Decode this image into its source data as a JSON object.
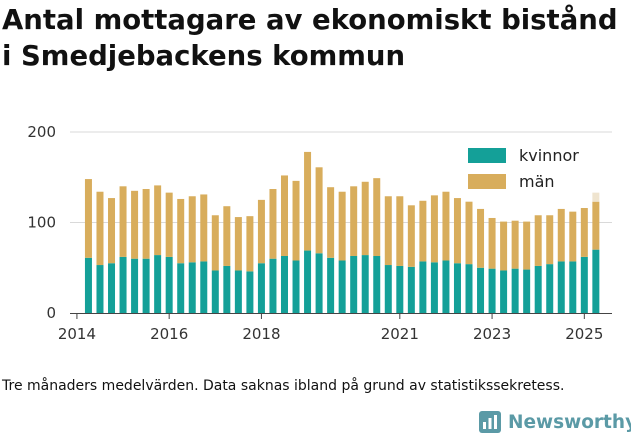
{
  "title": "Antal mottagare av ekonomiskt bistånd i Smedjebackens kommun",
  "note": "Tre månaders medelvärden. Data saknas ibland på grund av statistikssekretess.",
  "brand": {
    "name": "Newsworthy",
    "logo_icon": "newsworthy-logo-icon"
  },
  "colors": {
    "kvinnor": "#14a098",
    "man": "#d8ad5c",
    "grid": "#d9d9d9",
    "faded": "#efe4cf"
  },
  "chart_data": {
    "type": "bar",
    "stacked": true,
    "ylim": [
      0,
      200
    ],
    "yticks": [
      0,
      100,
      200
    ],
    "xticks": [
      {
        "label": "2014",
        "at": 2014.0
      },
      {
        "label": "2016",
        "at": 2016.0
      },
      {
        "label": "2018",
        "at": 2018.0
      },
      {
        "label": "2021",
        "at": 2021.0
      },
      {
        "label": "2023",
        "at": 2023.0
      },
      {
        "label": "2025",
        "at": 2025.0
      }
    ],
    "xlim": [
      2013.85,
      2025.6
    ],
    "grid": true,
    "legend_position": "top-right",
    "x": [
      2014.25,
      2014.5,
      2014.75,
      2015.0,
      2015.25,
      2015.5,
      2015.75,
      2016.0,
      2016.25,
      2016.5,
      2016.75,
      2017.0,
      2017.25,
      2017.5,
      2017.75,
      2018.0,
      2018.25,
      2018.5,
      2018.75,
      2019.0,
      2019.25,
      2019.5,
      2019.75,
      2020.0,
      2020.25,
      2020.5,
      2020.75,
      2021.0,
      2021.25,
      2021.5,
      2021.75,
      2022.0,
      2022.25,
      2022.5,
      2022.75,
      2023.0,
      2023.25,
      2023.5,
      2023.75,
      2024.0,
      2024.25,
      2024.5,
      2024.75,
      2025.0,
      2025.25
    ],
    "series": [
      {
        "name": "kvinnor",
        "values": [
          61,
          53,
          55,
          62,
          60,
          60,
          64,
          62,
          55,
          56,
          57,
          47,
          52,
          47,
          46,
          55,
          60,
          63,
          58,
          69,
          66,
          61,
          58,
          63,
          64,
          63,
          53,
          52,
          51,
          57,
          56,
          58,
          55,
          54,
          50,
          49,
          47,
          49,
          48,
          52,
          54,
          57,
          57,
          62,
          70
        ]
      },
      {
        "name": "män",
        "values": [
          87,
          81,
          72,
          78,
          75,
          77,
          77,
          71,
          71,
          73,
          74,
          61,
          66,
          59,
          61,
          70,
          77,
          89,
          88,
          109,
          95,
          78,
          76,
          77,
          81,
          86,
          76,
          77,
          68,
          67,
          74,
          76,
          72,
          69,
          65,
          56,
          54,
          53,
          53,
          56,
          54,
          58,
          55,
          54,
          53
        ]
      }
    ]
  }
}
